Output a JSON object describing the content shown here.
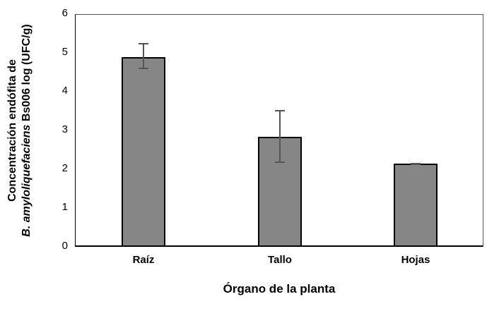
{
  "chart_data": {
    "type": "bar",
    "title": "",
    "categories": [
      "Raíz",
      "Tallo",
      "Hojas"
    ],
    "values": [
      4.9,
      2.84,
      2.14
    ],
    "error_bars": [
      {
        "lower": 4.6,
        "upper": 5.24
      },
      {
        "lower": 2.18,
        "upper": 3.51
      },
      {
        "lower": 2.13,
        "upper": 2.15
      }
    ],
    "xlabel": "Órgano de la planta",
    "ylabel_line1": "Concentración endófita de",
    "ylabel_line2_italic": "B. amyloliquefaciens",
    "ylabel_line2_rest": " Bs006 log (UFC/g)",
    "ylim": [
      0,
      6
    ],
    "yticks": [
      "0",
      "1",
      "2",
      "3",
      "4",
      "5",
      "6"
    ],
    "grid": false,
    "legend": null,
    "bar_color": "#868686",
    "bar_edge_color": "#000000",
    "error_bar_color": "#555555"
  }
}
